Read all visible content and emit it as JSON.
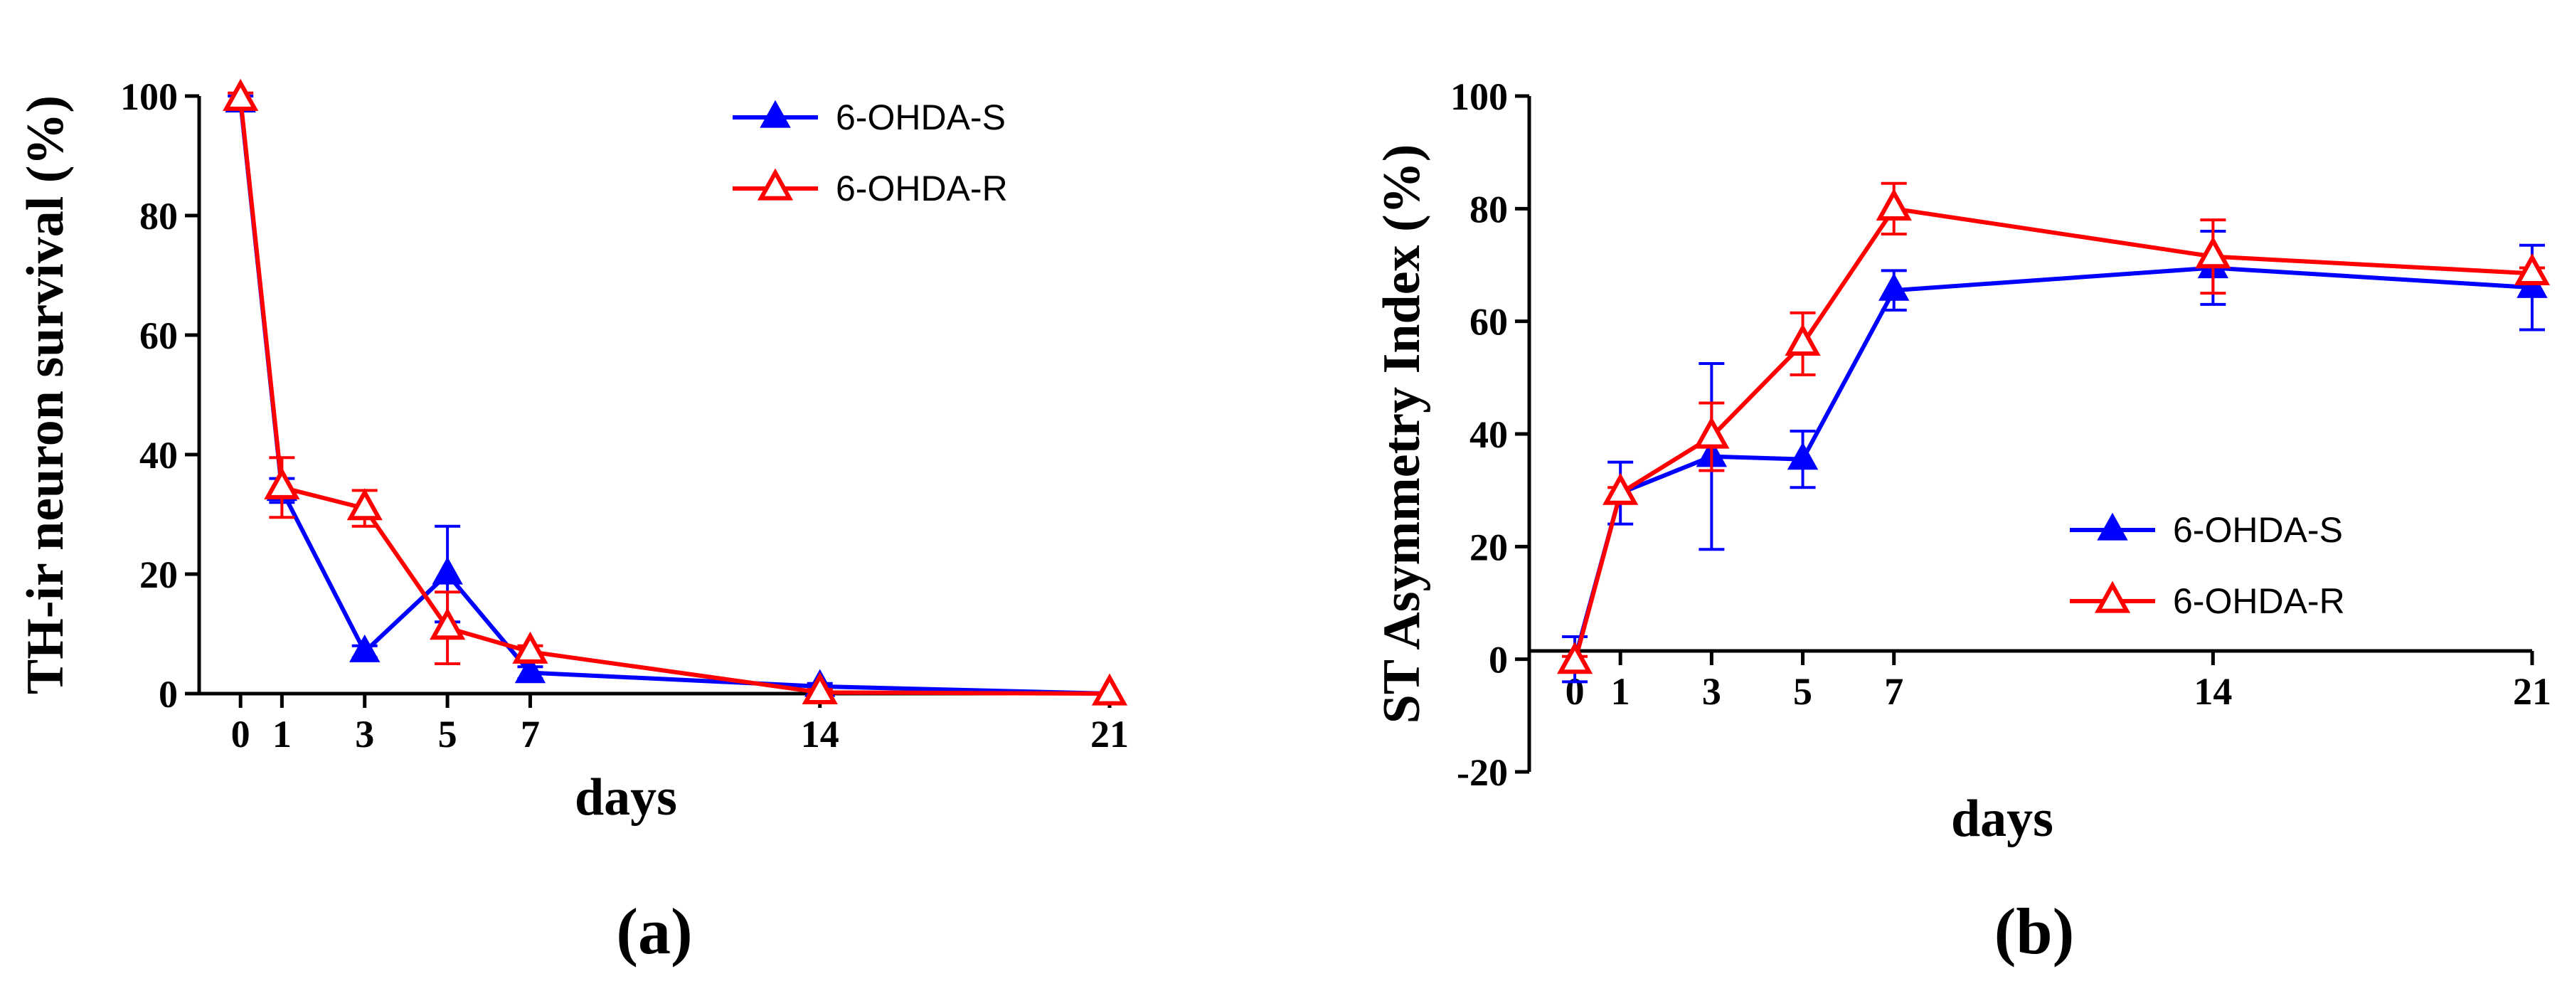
{
  "panels": [
    {
      "panel_label": "(a)",
      "chart_data": {
        "type": "line",
        "xlabel": "days",
        "ylabel": "TH-ir neuron survival (%)",
        "x": [
          0,
          1,
          3,
          5,
          7,
          14,
          21
        ],
        "xticks": [
          "0",
          "1",
          "3",
          "5",
          "7",
          "14",
          "21"
        ],
        "xlim": [
          -1,
          21
        ],
        "ylim": [
          0,
          100
        ],
        "yticks": [
          0,
          20,
          40,
          60,
          80,
          100
        ],
        "legend_position": "top-right",
        "series": [
          {
            "name": "6-OHDA-S",
            "color": "#0000ff",
            "marker": "filled-triangle",
            "values": [
              99,
              34,
              7,
              20,
              3.5,
              1.2,
              0
            ],
            "errors": [
              1,
              2,
              1,
              8,
              1,
              0.5,
              0
            ]
          },
          {
            "name": "6-OHDA-R",
            "color": "#ff0000",
            "marker": "open-triangle",
            "values": [
              99.5,
              34.5,
              31,
              11,
              7,
              0.2,
              0
            ],
            "errors": [
              1,
              5,
              3,
              6,
              1,
              0.5,
              0
            ]
          }
        ]
      }
    },
    {
      "panel_label": "(b)",
      "chart_data": {
        "type": "line",
        "xlabel": "days",
        "ylabel": "ST Asymmetry Index (%)",
        "x": [
          0,
          1,
          3,
          5,
          7,
          14,
          21
        ],
        "xticks": [
          "0",
          "1",
          "3",
          "5",
          "7",
          "14",
          "21"
        ],
        "xlim": [
          -1,
          21
        ],
        "ylim": [
          -20,
          100
        ],
        "yticks": [
          -20,
          0,
          20,
          40,
          60,
          80,
          100
        ],
        "legend_position": "bottom-right",
        "series": [
          {
            "name": "6-OHDA-S",
            "color": "#0000ff",
            "marker": "filled-triangle",
            "values": [
              0,
              29.5,
              36,
              35.5,
              65.5,
              69.5,
              66
            ],
            "errors": [
              4,
              5.5,
              16.5,
              5,
              3.5,
              6.5,
              7.5
            ]
          },
          {
            "name": "6-OHDA-R",
            "color": "#ff0000",
            "marker": "open-triangle",
            "values": [
              -0.5,
              29.5,
              39.5,
              56,
              80,
              71.5,
              68.5
            ],
            "errors": [
              1,
              1,
              6,
              5.5,
              4.5,
              6.5,
              1
            ]
          }
        ]
      }
    }
  ]
}
